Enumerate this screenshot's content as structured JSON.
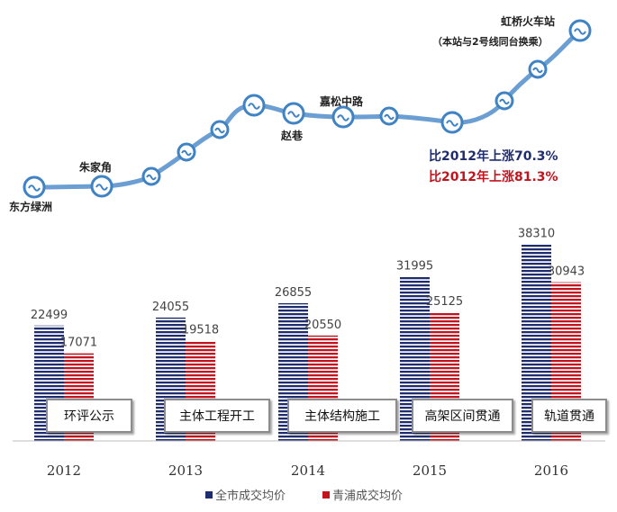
{
  "chart_data": {
    "type": "bar",
    "categories": [
      "2012",
      "2013",
      "2014",
      "2015",
      "2016"
    ],
    "series": [
      {
        "name": "全市成交均价",
        "color": "#1f2d6e",
        "values": [
          22499,
          24055,
          26855,
          31995,
          38310
        ]
      },
      {
        "name": "青浦成交均价",
        "color": "#c0141e",
        "values": [
          17071,
          19518,
          20550,
          25125,
          30943
        ]
      }
    ],
    "milestones": [
      "环评公示",
      "主体工程开工",
      "主体结构施工",
      "高架区间贯通",
      "轨道贯通"
    ],
    "rail_stations": {
      "start": "东方绿洲",
      "zhujiajiao": "朱家角",
      "zhaoxiang": "赵巷",
      "jiasong": "嘉松中路",
      "end": "虹桥火车站",
      "end_note": "（本站与2号线同台换乘）"
    },
    "rise_notes": [
      {
        "text": "比2012年上涨70.3%",
        "color": "#1f2d6e"
      },
      {
        "text": "比2012年上涨81.3%",
        "color": "#c0141e"
      }
    ],
    "legend_position": "bottom",
    "bar_fill": "horizontal-stripes",
    "grid": false
  }
}
